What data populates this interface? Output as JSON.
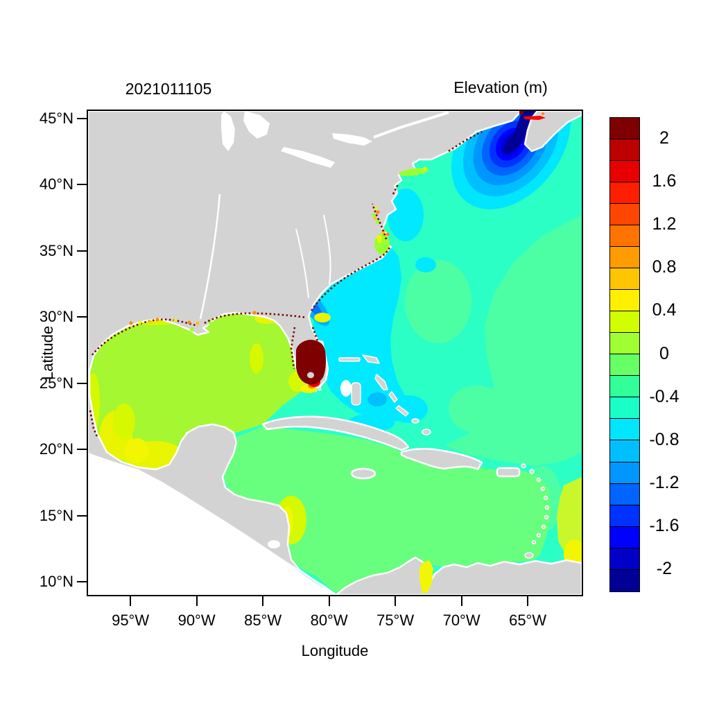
{
  "figure": {
    "timestamp_title": "2021011105",
    "colorbar_title": "Elevation (m)"
  },
  "axes": {
    "x_label": "Longitude",
    "y_label": "Latitude",
    "x_ticks": [
      {
        "label": "95°W",
        "lon": -95
      },
      {
        "label": "90°W",
        "lon": -90
      },
      {
        "label": "85°W",
        "lon": -85
      },
      {
        "label": "80°W",
        "lon": -80
      },
      {
        "label": "75°W",
        "lon": -75
      },
      {
        "label": "70°W",
        "lon": -70
      },
      {
        "label": "65°W",
        "lon": -65
      }
    ],
    "y_ticks": [
      {
        "label": "45°N",
        "lat": 45
      },
      {
        "label": "40°N",
        "lat": 40
      },
      {
        "label": "35°N",
        "lat": 35
      },
      {
        "label": "30°N",
        "lat": 30
      },
      {
        "label": "25°N",
        "lat": 25
      },
      {
        "label": "20°N",
        "lat": 20
      },
      {
        "label": "15°N",
        "lat": 15
      },
      {
        "label": "10°N",
        "lat": 10
      }
    ]
  },
  "chart_data": {
    "type": "heatmap",
    "title": "2021011105",
    "colorbar_title": "Elevation (m)",
    "xlabel": "Longitude",
    "ylabel": "Latitude",
    "xlim": [
      "98.2°W",
      "60.9°W"
    ],
    "ylim": [
      "8.9°N",
      "45.5°N"
    ],
    "x_tick_labels": [
      "95°W",
      "90°W",
      "85°W",
      "80°W",
      "75°W",
      "70°W",
      "65°W"
    ],
    "y_tick_labels": [
      "45°N",
      "40°N",
      "35°N",
      "30°N",
      "25°N",
      "20°N",
      "15°N",
      "10°N"
    ],
    "grid": false,
    "colorbar": {
      "range_m": [
        -2.2,
        2.2
      ],
      "cell_span_m": 0.2,
      "tick_labels": [
        "2",
        "1.6",
        "1.2",
        "0.8",
        "0.4",
        "0",
        "-0.4",
        "-0.8",
        "-1.2",
        "-1.6",
        "-2"
      ],
      "tick_values": [
        2,
        1.6,
        1.2,
        0.8,
        0.4,
        0,
        -0.4,
        -0.8,
        -1.2,
        -1.6,
        -2
      ],
      "colors_top_to_bottom": [
        "#7F0000",
        "#BD0000",
        "#E80000",
        "#FF1E00",
        "#FF4600",
        "#FF7300",
        "#FF9C00",
        "#FFC500",
        "#FFF000",
        "#D2FF00",
        "#9FFF33",
        "#66FF66",
        "#33FF99",
        "#1AFFC8",
        "#00E6FF",
        "#00BFFF",
        "#0096FF",
        "#0064FF",
        "#0032FF",
        "#0000FF",
        "#0000C8",
        "#000096"
      ]
    },
    "features": [
      {
        "name": "Gulf of Mexico interior",
        "approx_value_m": 0.1
      },
      {
        "name": "Campeche / Texas shelf patches",
        "approx_value_m": 0.5
      },
      {
        "name": "Caribbean Sea",
        "approx_value_m": -0.1
      },
      {
        "name": "Open Atlantic",
        "approx_value_m": -0.4
      },
      {
        "name": "US Southeast coastal band",
        "approx_value_m": -0.7
      },
      {
        "name": "South Carolina coastal low",
        "approx_value_m": -1.3
      },
      {
        "name": "Gulf of Maine / Bay of Fundy low",
        "approx_value_m": -2.2
      },
      {
        "name": "South Florida flooded zone",
        "approx_value_m": 2.2
      },
      {
        "name": "Coastal high-water speckles",
        "approx_value_m": 2.0
      },
      {
        "name": "Land (no data)",
        "approx_value_m": null
      },
      {
        "name": "Pacific corner (outside model domain)",
        "approx_value_m": null
      }
    ],
    "palette": {
      "land": "#D3D3D3",
      "white": "#FFFFFF",
      "atl_base": "#2BFFC6",
      "atl_green": "#4DFFA4",
      "caribbean": "#69FF7E",
      "cyan_band": "#00E9FF",
      "cyan_deep": "#00BFFF",
      "blue_outer": "#00AEFF",
      "blue_inner": "#0072FF",
      "gulf_green": "#A4F731",
      "coast_green": "#99FF33",
      "yellow": "#F2F600",
      "yellow_soft": "#E8F400",
      "yellow_green": "#D6F800",
      "band_yellow_green": "#C9F72B",
      "maroon": "#7F0000",
      "red": "#E80000",
      "orange": "#FF8800",
      "gold": "#FFC500",
      "ring1": "#00E6FF",
      "ring2": "#00BFFF",
      "ring3": "#0096FF",
      "ring4": "#0064FF",
      "ring5": "#0032FF",
      "ring6": "#0000FF",
      "ring7": "#0000C8",
      "navy": "#000096"
    }
  }
}
